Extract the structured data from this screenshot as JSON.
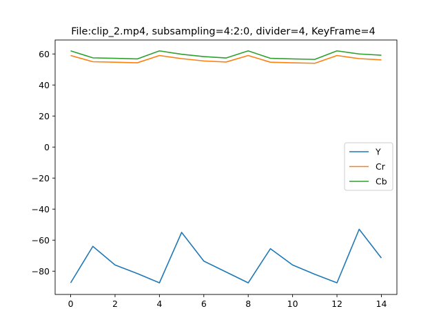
{
  "chart_data": {
    "type": "line",
    "title": "File:clip_2.mp4, subsampling=4:2:0, divider=4, KeyFrame=4",
    "xlabel": "",
    "ylabel": "",
    "x": [
      0,
      1,
      2,
      3,
      4,
      5,
      6,
      7,
      8,
      9,
      10,
      11,
      12,
      13,
      14
    ],
    "xlim": [
      -0.7,
      14.7
    ],
    "ylim": [
      -95,
      69
    ],
    "xticks": [
      0,
      2,
      4,
      6,
      8,
      10,
      12,
      14
    ],
    "yticks": [
      -80,
      -60,
      -40,
      -20,
      0,
      20,
      40,
      60
    ],
    "ytick_labels": [
      "−80",
      "−60",
      "−40",
      "−20",
      "0",
      "20",
      "40",
      "60"
    ],
    "grid": false,
    "legend_position": "center-right",
    "series": [
      {
        "name": "Y",
        "color": "#1f77b4",
        "values": [
          -87.5,
          -64,
          -76,
          -81.5,
          -87.5,
          -55,
          -73.5,
          -80.5,
          -87.5,
          -65.5,
          -76,
          -82,
          -87.5,
          -53,
          -71.5
        ]
      },
      {
        "name": "Cr",
        "color": "#ff7f0e",
        "values": [
          59,
          55,
          54.7,
          54.3,
          59,
          57,
          55.5,
          54.8,
          59,
          54.7,
          54.3,
          54,
          59,
          57,
          56.2
        ]
      },
      {
        "name": "Cb",
        "color": "#2ca02c",
        "values": [
          62,
          57.5,
          57.2,
          56.8,
          62,
          59.8,
          58.3,
          57.4,
          62,
          57.2,
          56.8,
          56.5,
          62,
          60,
          59.2
        ]
      }
    ]
  }
}
